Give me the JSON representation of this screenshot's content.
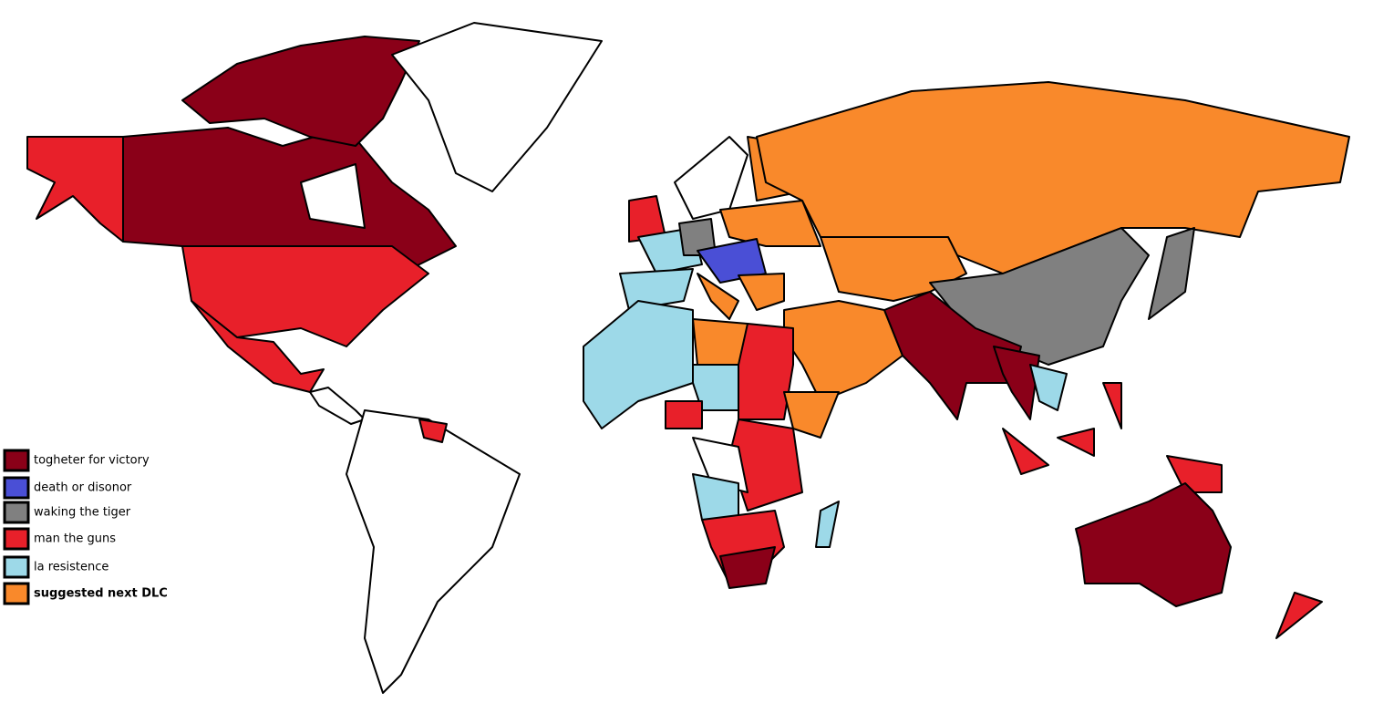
{
  "legend": {
    "items": [
      {
        "label": "togheter for victory",
        "color": "#8a0018"
      },
      {
        "label": "death or disonor",
        "color": "#4a4fd6"
      },
      {
        "label": "waking the tiger",
        "color": "#808080"
      },
      {
        "label": "man the guns",
        "color": "#e8202a"
      },
      {
        "label": "la resistence",
        "color": "#9dd9e8"
      },
      {
        "label": "suggested next DLC",
        "color": "#f9892b"
      }
    ]
  }
}
